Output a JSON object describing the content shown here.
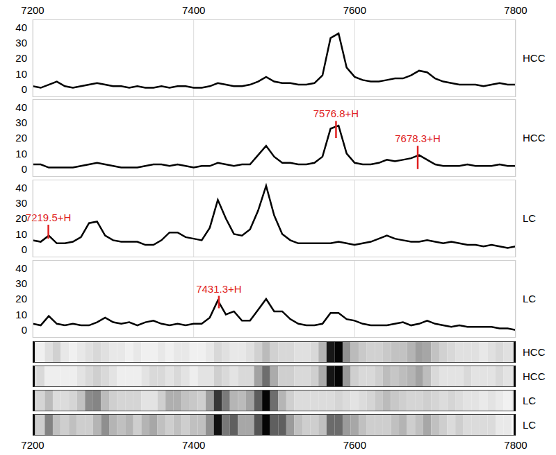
{
  "chart_data": [
    {
      "type": "line",
      "x": [
        7200,
        7210,
        7220,
        7230,
        7240,
        7250,
        7260,
        7270,
        7280,
        7290,
        7300,
        7310,
        7320,
        7330,
        7340,
        7350,
        7360,
        7370,
        7380,
        7390,
        7400,
        7410,
        7420,
        7430,
        7440,
        7450,
        7460,
        7470,
        7480,
        7490,
        7500,
        7510,
        7520,
        7530,
        7540,
        7550,
        7560,
        7570,
        7580,
        7590,
        7600,
        7610,
        7620,
        7630,
        7640,
        7650,
        7660,
        7670,
        7680,
        7690,
        7700,
        7710,
        7720,
        7730,
        7740,
        7750,
        7760,
        7770,
        7780,
        7790,
        7800
      ],
      "xlim": [
        7200,
        7800
      ],
      "xticks": [
        7200,
        7400,
        7600,
        7800
      ],
      "ylim": [
        -5,
        45
      ],
      "yticks": [
        0,
        10,
        20,
        30,
        40
      ],
      "grid": true,
      "color": "#000000",
      "series": [
        {
          "name": "HCC",
          "values": [
            2,
            1,
            3,
            5,
            2,
            1,
            2,
            3,
            4,
            3,
            2,
            2,
            1,
            2,
            1,
            1,
            2,
            1,
            2,
            2,
            1,
            1,
            2,
            4,
            3,
            2,
            2,
            3,
            5,
            8,
            5,
            4,
            4,
            3,
            3,
            4,
            9,
            33,
            36,
            14,
            8,
            6,
            5,
            5,
            6,
            7,
            7,
            9,
            12,
            11,
            7,
            5,
            4,
            3,
            3,
            3,
            2,
            3,
            4,
            3,
            3
          ],
          "annotations": []
        },
        {
          "name": "HCC",
          "values": [
            3,
            3,
            1,
            1,
            1,
            1,
            2,
            3,
            4,
            3,
            2,
            1,
            1,
            1,
            2,
            3,
            3,
            2,
            3,
            2,
            1,
            2,
            2,
            4,
            3,
            2,
            3,
            3,
            9,
            15,
            8,
            4,
            4,
            3,
            3,
            4,
            8,
            26,
            28,
            10,
            4,
            3,
            3,
            4,
            6,
            5,
            6,
            7,
            9,
            6,
            3,
            2,
            2,
            2,
            3,
            2,
            2,
            2,
            3,
            2,
            2
          ],
          "annotations": [
            {
              "x": 7576.8,
              "label": "7576.8+H",
              "y": [
                20,
                31
              ]
            },
            {
              "x": 7678.3,
              "label": "7678.3+H",
              "y": [
                0,
                15
              ]
            }
          ]
        },
        {
          "name": "LC",
          "values": [
            6,
            5,
            9,
            4,
            4,
            5,
            8,
            17,
            18,
            9,
            6,
            5,
            5,
            5,
            3,
            3,
            6,
            11,
            11,
            8,
            7,
            6,
            14,
            32,
            20,
            10,
            9,
            13,
            25,
            41,
            22,
            10,
            6,
            4,
            4,
            4,
            4,
            4,
            5,
            4,
            3,
            4,
            5,
            7,
            9,
            7,
            6,
            5,
            5,
            6,
            5,
            4,
            5,
            4,
            3,
            3,
            2,
            3,
            2,
            1,
            2
          ],
          "annotations": [
            {
              "x": 7219.5,
              "label": "7219.5+H",
              "y": [
                7,
                16
              ]
            }
          ]
        },
        {
          "name": "LC",
          "values": [
            4,
            3,
            9,
            4,
            3,
            4,
            3,
            3,
            5,
            8,
            5,
            4,
            5,
            3,
            5,
            6,
            4,
            3,
            4,
            3,
            4,
            4,
            8,
            19,
            10,
            12,
            6,
            6,
            13,
            20,
            12,
            12,
            7,
            4,
            3,
            3,
            4,
            11,
            11,
            7,
            6,
            4,
            3,
            3,
            3,
            4,
            5,
            3,
            4,
            6,
            4,
            3,
            2,
            3,
            2,
            2,
            2,
            2,
            1,
            1,
            0
          ],
          "annotations": [
            {
              "x": 7431.3,
              "label": "7431.3+H",
              "y": [
                14,
                22
              ]
            }
          ]
        }
      ]
    },
    {
      "type": "heatmap",
      "x": [
        7200,
        7210,
        7220,
        7230,
        7240,
        7250,
        7260,
        7270,
        7280,
        7290,
        7300,
        7310,
        7320,
        7330,
        7340,
        7350,
        7360,
        7370,
        7380,
        7390,
        7400,
        7410,
        7420,
        7430,
        7440,
        7450,
        7460,
        7470,
        7480,
        7490,
        7500,
        7510,
        7520,
        7530,
        7540,
        7550,
        7560,
        7570,
        7580,
        7590,
        7600,
        7610,
        7620,
        7630,
        7640,
        7650,
        7660,
        7670,
        7680,
        7690,
        7700,
        7710,
        7720,
        7730,
        7740,
        7750,
        7760,
        7770,
        7780,
        7790,
        7800
      ],
      "xlim": [
        7200,
        7800
      ],
      "xticks": [
        7200,
        7400,
        7600,
        7800
      ],
      "series": [
        {
          "name": "HCC",
          "values": [
            2,
            1,
            3,
            5,
            2,
            1,
            2,
            3,
            4,
            3,
            2,
            2,
            1,
            2,
            1,
            1,
            2,
            1,
            2,
            2,
            1,
            1,
            2,
            4,
            3,
            2,
            2,
            3,
            5,
            8,
            5,
            4,
            4,
            3,
            3,
            4,
            9,
            33,
            36,
            14,
            8,
            6,
            5,
            5,
            6,
            7,
            7,
            9,
            12,
            11,
            7,
            5,
            4,
            3,
            3,
            3,
            2,
            3,
            4,
            3,
            3
          ]
        },
        {
          "name": "HCC",
          "values": [
            3,
            3,
            1,
            1,
            1,
            1,
            2,
            3,
            4,
            3,
            2,
            1,
            1,
            1,
            2,
            3,
            3,
            2,
            3,
            2,
            1,
            2,
            2,
            4,
            3,
            2,
            3,
            3,
            9,
            15,
            8,
            4,
            4,
            3,
            3,
            4,
            8,
            26,
            28,
            10,
            4,
            3,
            3,
            4,
            6,
            5,
            6,
            7,
            9,
            6,
            3,
            2,
            2,
            2,
            3,
            2,
            2,
            2,
            3,
            2,
            2
          ]
        },
        {
          "name": "LC",
          "values": [
            6,
            5,
            9,
            4,
            4,
            5,
            8,
            17,
            18,
            9,
            6,
            5,
            5,
            5,
            3,
            3,
            6,
            11,
            11,
            8,
            7,
            6,
            14,
            32,
            20,
            10,
            9,
            13,
            25,
            41,
            22,
            10,
            6,
            4,
            4,
            4,
            4,
            4,
            5,
            4,
            3,
            4,
            5,
            7,
            9,
            7,
            6,
            5,
            5,
            6,
            5,
            4,
            5,
            4,
            3,
            3,
            2,
            3,
            2,
            1,
            2
          ]
        },
        {
          "name": "LC",
          "values": [
            4,
            3,
            9,
            4,
            3,
            4,
            3,
            3,
            5,
            8,
            5,
            4,
            5,
            3,
            5,
            6,
            4,
            3,
            4,
            3,
            4,
            4,
            8,
            19,
            10,
            12,
            6,
            6,
            13,
            20,
            12,
            12,
            7,
            4,
            3,
            3,
            4,
            11,
            11,
            7,
            6,
            4,
            3,
            3,
            3,
            4,
            5,
            3,
            4,
            6,
            4,
            3,
            2,
            3,
            2,
            2,
            2,
            2,
            1,
            1,
            0
          ]
        }
      ]
    }
  ]
}
